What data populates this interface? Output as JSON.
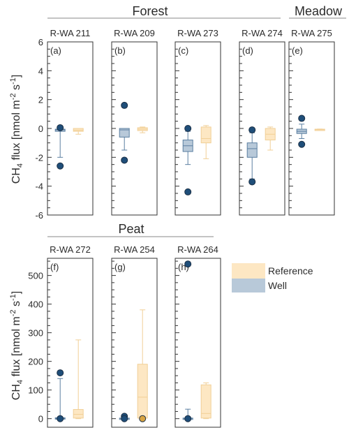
{
  "groups": [
    {
      "label": "Forest"
    },
    {
      "label": "Meadow"
    },
    {
      "label": "Peat"
    }
  ],
  "ylabel": {
    "top": {
      "prefix": "CH",
      "sub": "4",
      "mid": " flux [nmol m",
      "sup1": "-2",
      "s": " s",
      "sup2": "-1",
      "end": "]"
    },
    "bottom": {
      "prefix": "CH",
      "sub": "4",
      "mid": " flux [nmol m",
      "sup1": "-2",
      "s": " s",
      "sup2": "-1",
      "end": "]"
    }
  },
  "legend": {
    "reference": "Reference",
    "well": "Well"
  },
  "colors": {
    "well_fill": "#b8c9d9",
    "well_edge": "#5b7fa1",
    "well_point": "#1f4e79",
    "ref_fill": "#fde7c3",
    "ref_edge": "#f1cf96",
    "ref_point": "#d9a441",
    "axis": "#333333"
  },
  "chart_data": [
    {
      "type": "box",
      "row": "top",
      "ylim": [
        -6,
        6
      ],
      "yticks": [
        "-6",
        "-4",
        "-2",
        "0",
        "2",
        "4",
        "6"
      ],
      "yticks_values": [
        -6,
        -4,
        -2,
        0,
        2,
        4,
        6
      ],
      "panels": [
        {
          "site": "R-WA 211",
          "tag": "(a)",
          "well": {
            "q1": -0.2,
            "med": -0.1,
            "q3": -0.05,
            "wlo": -2.0,
            "whi": 0.0,
            "outliers": [
              0.05,
              -2.6
            ]
          },
          "ref": {
            "q1": -0.2,
            "med": -0.12,
            "q3": 0.0,
            "wlo": -0.4,
            "whi": 0.0,
            "outliers": []
          }
        },
        {
          "site": "R-WA 209",
          "tag": "(b)",
          "well": {
            "q1": -0.6,
            "med": -0.1,
            "q3": 0.0,
            "wlo": -1.5,
            "whi": 0.0,
            "outliers": [
              1.6,
              -2.2
            ]
          },
          "ref": {
            "q1": -0.15,
            "med": -0.05,
            "q3": 0.05,
            "wlo": -0.3,
            "whi": 0.1,
            "outliers": []
          }
        },
        {
          "site": "R-WA 273",
          "tag": "(c)",
          "well": {
            "q1": -1.6,
            "med": -1.2,
            "q3": -0.8,
            "wlo": -2.5,
            "whi": -0.2,
            "outliers": [
              0.0,
              -4.4
            ]
          },
          "ref": {
            "q1": -1.0,
            "med": -0.7,
            "q3": 0.1,
            "wlo": -2.1,
            "whi": 0.2,
            "outliers": []
          }
        },
        {
          "site": "R-WA 274",
          "tag": "(d)",
          "well": {
            "q1": -2.0,
            "med": -1.4,
            "q3": -1.0,
            "wlo": -3.5,
            "whi": -0.3,
            "outliers": [
              -0.1,
              -3.7
            ]
          },
          "ref": {
            "q1": -0.8,
            "med": -0.4,
            "q3": 0.0,
            "wlo": -1.5,
            "whi": 0.1,
            "outliers": []
          }
        },
        {
          "site": "R-WA 275",
          "tag": "(e)",
          "well": {
            "q1": -0.35,
            "med": -0.2,
            "q3": -0.05,
            "wlo": -0.7,
            "whi": 0.3,
            "outliers": [
              0.7,
              -1.1
            ]
          },
          "ref": {
            "q1": -0.1,
            "med": -0.08,
            "q3": -0.05,
            "wlo": -0.12,
            "whi": -0.04,
            "outliers": []
          }
        }
      ]
    },
    {
      "type": "box",
      "row": "bottom",
      "ylim": [
        -30,
        560
      ],
      "yticks": [
        "0",
        "100",
        "200",
        "300",
        "400",
        "500"
      ],
      "yticks_values": [
        0,
        100,
        200,
        300,
        400,
        500
      ],
      "panels": [
        {
          "site": "R-WA 272",
          "tag": "(f)",
          "well": {
            "q1": 0,
            "med": 1,
            "q3": 3,
            "wlo": 0,
            "whi": 140,
            "outliers": [
              160,
              0
            ]
          },
          "ref": {
            "q1": 2,
            "med": 15,
            "q3": 32,
            "wlo": 0,
            "whi": 275,
            "outliers": []
          }
        },
        {
          "site": "R-WA 254",
          "tag": "(g)",
          "well": {
            "q1": 0,
            "med": 1,
            "q3": 2,
            "wlo": 0,
            "whi": 5,
            "outliers": [
              8,
              0
            ]
          },
          "ref": {
            "q1": 2,
            "med": 75,
            "q3": 190,
            "wlo": 0,
            "whi": 380,
            "outliers": [
              0
            ]
          }
        },
        {
          "site": "R-WA 264",
          "tag": "(h)",
          "well": {
            "q1": 0,
            "med": 1,
            "q3": 2,
            "wlo": 0,
            "whi": 33,
            "outliers": [
              540,
              0
            ]
          },
          "ref": {
            "q1": 2,
            "med": 18,
            "q3": 118,
            "wlo": 0,
            "whi": 125,
            "outliers": []
          }
        }
      ]
    }
  ]
}
